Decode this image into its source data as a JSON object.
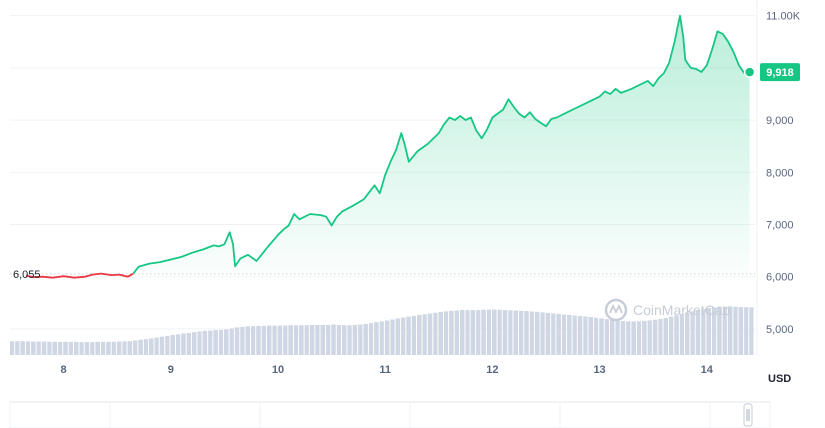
{
  "chart_data": {
    "type": "area",
    "x_ticks": [
      "8",
      "9",
      "10",
      "11",
      "12",
      "13",
      "14"
    ],
    "y_ticks": [
      "11.00K",
      "10,000",
      "9,000",
      "8,000",
      "7,000",
      "6,000",
      "5,000"
    ],
    "y_tick_values": [
      11000,
      10000,
      9000,
      8000,
      7000,
      6000,
      5000
    ],
    "ylim": [
      4500,
      11300
    ],
    "xlim": [
      7.5,
      14.45
    ],
    "unit_label": "USD",
    "baseline_value": 6055,
    "baseline_label": "6,055",
    "current_price_label": "9,918",
    "watermark": "CoinMarketCap",
    "colors": {
      "up": "#16c784",
      "down": "#ea3943",
      "volume": "#cfd6e4",
      "grid": "#eff2f5"
    },
    "series": [
      {
        "values": [
          [
            7.65,
            6020
          ],
          [
            7.72,
            5990
          ],
          [
            7.8,
            6000
          ],
          [
            7.9,
            5980
          ],
          [
            8.0,
            6010
          ],
          [
            8.1,
            5980
          ],
          [
            8.2,
            6000
          ],
          [
            8.27,
            6040
          ],
          [
            8.35,
            6060
          ],
          [
            8.45,
            6030
          ],
          [
            8.52,
            6040
          ],
          [
            8.6,
            6000
          ],
          [
            8.65,
            6060
          ],
          [
            8.7,
            6190
          ],
          [
            8.8,
            6250
          ],
          [
            8.9,
            6280
          ],
          [
            9.0,
            6330
          ],
          [
            9.1,
            6380
          ],
          [
            9.2,
            6460
          ],
          [
            9.3,
            6520
          ],
          [
            9.4,
            6600
          ],
          [
            9.45,
            6580
          ],
          [
            9.5,
            6620
          ],
          [
            9.55,
            6850
          ],
          [
            9.58,
            6620
          ],
          [
            9.6,
            6200
          ],
          [
            9.65,
            6350
          ],
          [
            9.72,
            6420
          ],
          [
            9.8,
            6300
          ],
          [
            9.9,
            6560
          ],
          [
            10.0,
            6800
          ],
          [
            10.05,
            6900
          ],
          [
            10.1,
            6980
          ],
          [
            10.15,
            7200
          ],
          [
            10.2,
            7100
          ],
          [
            10.3,
            7200
          ],
          [
            10.4,
            7180
          ],
          [
            10.45,
            7150
          ],
          [
            10.5,
            6980
          ],
          [
            10.55,
            7150
          ],
          [
            10.6,
            7250
          ],
          [
            10.7,
            7360
          ],
          [
            10.8,
            7480
          ],
          [
            10.9,
            7750
          ],
          [
            10.95,
            7600
          ],
          [
            11.0,
            7950
          ],
          [
            11.05,
            8200
          ],
          [
            11.1,
            8420
          ],
          [
            11.15,
            8750
          ],
          [
            11.18,
            8550
          ],
          [
            11.22,
            8200
          ],
          [
            11.3,
            8400
          ],
          [
            11.4,
            8550
          ],
          [
            11.5,
            8750
          ],
          [
            11.55,
            8920
          ],
          [
            11.6,
            9050
          ],
          [
            11.65,
            9000
          ],
          [
            11.7,
            9080
          ],
          [
            11.75,
            9000
          ],
          [
            11.8,
            9050
          ],
          [
            11.85,
            8800
          ],
          [
            11.9,
            8650
          ],
          [
            11.95,
            8820
          ],
          [
            12.0,
            9050
          ],
          [
            12.1,
            9200
          ],
          [
            12.15,
            9400
          ],
          [
            12.2,
            9250
          ],
          [
            12.25,
            9120
          ],
          [
            12.3,
            9050
          ],
          [
            12.35,
            9150
          ],
          [
            12.4,
            9020
          ],
          [
            12.45,
            8950
          ],
          [
            12.5,
            8880
          ],
          [
            12.55,
            9020
          ],
          [
            12.6,
            9050
          ],
          [
            12.7,
            9150
          ],
          [
            12.8,
            9250
          ],
          [
            12.9,
            9350
          ],
          [
            13.0,
            9450
          ],
          [
            13.05,
            9550
          ],
          [
            13.1,
            9500
          ],
          [
            13.15,
            9600
          ],
          [
            13.2,
            9520
          ],
          [
            13.3,
            9600
          ],
          [
            13.4,
            9700
          ],
          [
            13.45,
            9750
          ],
          [
            13.5,
            9650
          ],
          [
            13.55,
            9800
          ],
          [
            13.6,
            9900
          ],
          [
            13.65,
            10100
          ],
          [
            13.7,
            10500
          ],
          [
            13.73,
            10800
          ],
          [
            13.75,
            11000
          ],
          [
            13.78,
            10600
          ],
          [
            13.8,
            10150
          ],
          [
            13.85,
            10000
          ],
          [
            13.9,
            9980
          ],
          [
            13.95,
            9920
          ],
          [
            14.0,
            10050
          ],
          [
            14.05,
            10350
          ],
          [
            14.1,
            10700
          ],
          [
            14.15,
            10650
          ],
          [
            14.2,
            10500
          ],
          [
            14.25,
            10300
          ],
          [
            14.3,
            10050
          ],
          [
            14.35,
            9900
          ],
          [
            14.4,
            9918
          ]
        ]
      },
      {
        "values": [
          [
            7.5,
            4.0
          ],
          [
            7.6,
            4.0
          ],
          [
            7.7,
            3.9
          ],
          [
            7.8,
            3.9
          ],
          [
            7.9,
            3.8
          ],
          [
            8.0,
            3.8
          ],
          [
            8.1,
            3.8
          ],
          [
            8.2,
            3.7
          ],
          [
            8.3,
            3.8
          ],
          [
            8.4,
            3.8
          ],
          [
            8.5,
            3.9
          ],
          [
            8.6,
            4.0
          ],
          [
            8.7,
            4.4
          ],
          [
            8.8,
            4.8
          ],
          [
            8.9,
            5.3
          ],
          [
            9.0,
            5.8
          ],
          [
            9.1,
            6.2
          ],
          [
            9.2,
            6.6
          ],
          [
            9.3,
            7.0
          ],
          [
            9.4,
            7.2
          ],
          [
            9.5,
            7.4
          ],
          [
            9.6,
            8.0
          ],
          [
            9.7,
            8.3
          ],
          [
            9.8,
            8.4
          ],
          [
            9.9,
            8.5
          ],
          [
            10.0,
            8.5
          ],
          [
            10.1,
            8.6
          ],
          [
            10.2,
            8.6
          ],
          [
            10.3,
            8.7
          ],
          [
            10.4,
            8.7
          ],
          [
            10.5,
            8.8
          ],
          [
            10.6,
            8.6
          ],
          [
            10.7,
            8.7
          ],
          [
            10.8,
            9.0
          ],
          [
            10.9,
            9.5
          ],
          [
            11.0,
            10.0
          ],
          [
            11.1,
            10.6
          ],
          [
            11.2,
            11.1
          ],
          [
            11.3,
            11.6
          ],
          [
            11.4,
            12.0
          ],
          [
            11.5,
            12.5
          ],
          [
            11.6,
            12.8
          ],
          [
            11.7,
            13.0
          ],
          [
            11.8,
            13.0
          ],
          [
            11.9,
            13.1
          ],
          [
            12.0,
            13.2
          ],
          [
            12.1,
            13.0
          ],
          [
            12.2,
            12.9
          ],
          [
            12.3,
            12.7
          ],
          [
            12.4,
            12.5
          ],
          [
            12.5,
            12.2
          ],
          [
            12.6,
            11.9
          ],
          [
            12.7,
            11.6
          ],
          [
            12.8,
            11.3
          ],
          [
            12.9,
            11.0
          ],
          [
            13.0,
            10.6
          ],
          [
            13.1,
            10.2
          ],
          [
            13.2,
            9.8
          ],
          [
            13.3,
            9.7
          ],
          [
            13.4,
            9.9
          ],
          [
            13.5,
            10.2
          ],
          [
            13.6,
            10.7
          ],
          [
            13.7,
            11.5
          ],
          [
            13.8,
            12.3
          ],
          [
            13.9,
            13.0
          ],
          [
            14.0,
            13.6
          ],
          [
            14.1,
            14.0
          ],
          [
            14.2,
            14.1
          ],
          [
            14.3,
            13.9
          ],
          [
            14.4,
            13.8
          ]
        ]
      }
    ]
  }
}
